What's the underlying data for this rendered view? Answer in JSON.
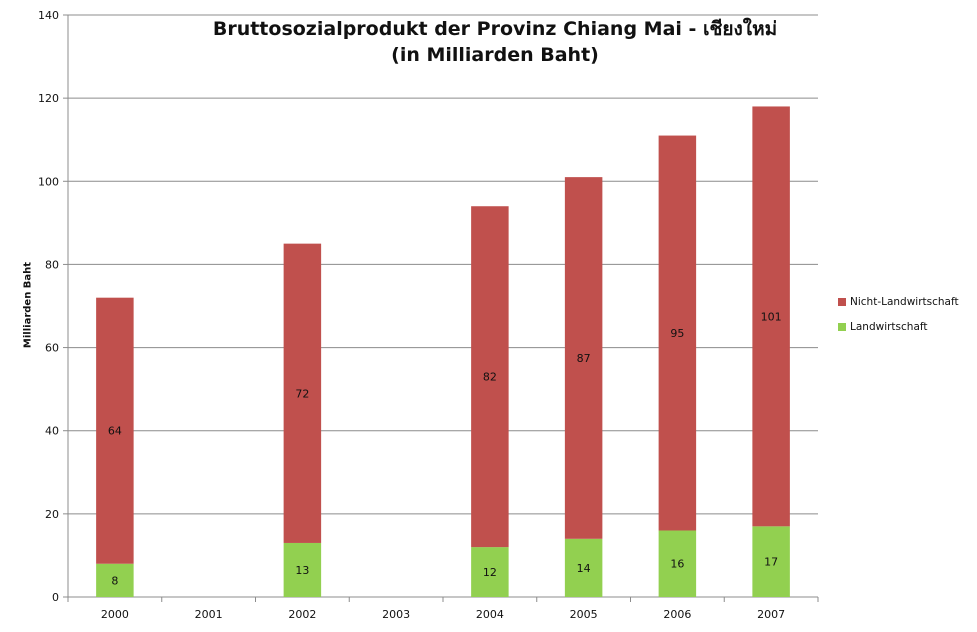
{
  "chart_data": {
    "type": "bar",
    "stacked": true,
    "title": [
      "Bruttosozialprodukt der Provinz Chiang Mai - เชียงใหม่",
      "(in Milliarden Baht)"
    ],
    "xlabel": "",
    "ylabel": "Milliarden Baht",
    "ylim": [
      0,
      140
    ],
    "yticks": [
      0,
      20,
      40,
      60,
      80,
      100,
      120,
      140
    ],
    "grid": true,
    "legend_position": "right",
    "categories": [
      "2000",
      "2001",
      "2002",
      "2003",
      "2004",
      "2005",
      "2006",
      "2007"
    ],
    "series": [
      {
        "name": "Landwirtschaft",
        "color": "#92d050",
        "values": [
          8,
          null,
          13,
          null,
          12,
          14,
          16,
          17
        ]
      },
      {
        "name": "Nicht-Landwirtschaft",
        "color": "#c0504d",
        "values": [
          64,
          null,
          72,
          null,
          82,
          87,
          95,
          101
        ]
      }
    ],
    "legend_order": [
      "Nicht-Landwirtschaft",
      "Landwirtschaft"
    ]
  }
}
